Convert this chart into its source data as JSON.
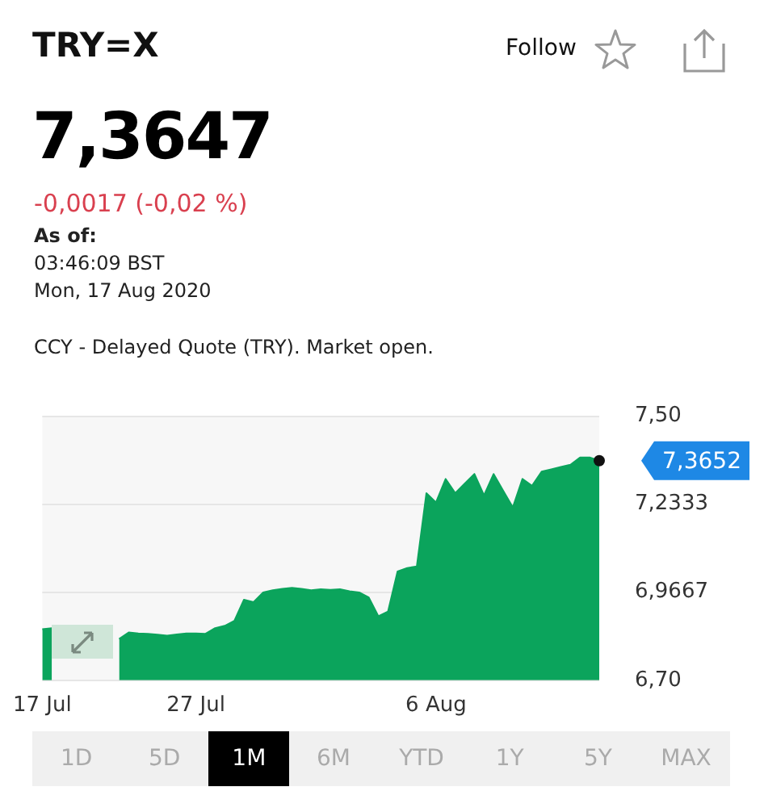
{
  "chart_data": {
    "type": "area",
    "title": "TRY=X",
    "subtitle": "CCY - Delayed Quote (TRY). Market open.",
    "categories": [
      "17 Jul",
      null,
      null,
      null,
      null,
      null,
      null,
      null,
      null,
      null,
      null,
      null,
      null,
      null,
      null,
      null,
      "27 Jul",
      null,
      null,
      null,
      null,
      null,
      null,
      null,
      null,
      null,
      null,
      null,
      null,
      null,
      null,
      null,
      null,
      null,
      null,
      null,
      null,
      null,
      null,
      null,
      null,
      "6 Aug",
      null,
      null,
      null,
      null,
      null,
      null,
      null,
      null,
      null,
      null,
      null,
      null,
      null,
      null,
      null,
      null,
      null
    ],
    "series": [
      {
        "color": "#0ba45c",
        "values": [
          6.855,
          6.858,
          null,
          null,
          null,
          null,
          null,
          null,
          6.825,
          6.845,
          6.842,
          6.841,
          6.838,
          6.835,
          6.839,
          6.842,
          6.842,
          6.841,
          6.858,
          6.865,
          6.88,
          6.944,
          6.937,
          6.966,
          6.973,
          6.977,
          6.98,
          6.977,
          6.973,
          6.976,
          6.974,
          6.976,
          6.97,
          6.966,
          6.951,
          6.894,
          6.908,
          7.03,
          7.04,
          7.045,
          7.267,
          7.239,
          7.31,
          7.267,
          7.296,
          7.325,
          7.26,
          7.325,
          7.274,
          7.224,
          7.31,
          7.289,
          7.332,
          7.339,
          7.346,
          7.353,
          7.375,
          7.375,
          7.365
        ]
      }
    ],
    "ylim": [
      6.7,
      7.5
    ],
    "yticks": [
      {
        "value": 7.5,
        "label": "7,50"
      },
      {
        "value": 7.2333,
        "label": "7,2333"
      },
      {
        "value": 6.9667,
        "label": "6,9667"
      },
      {
        "value": 6.7,
        "label": "6,70"
      }
    ],
    "grid": "y",
    "legend": false,
    "marker": "none",
    "annotations": [
      "7,3647",
      "-0,0017 (-0,02 %)",
      "As of:",
      "03:46:09 BST",
      "Mon, 17 Aug 2020",
      "Follow",
      "1D",
      "5D",
      "1M",
      "6M",
      "YTD",
      "1Y",
      "5Y",
      "MAX",
      "7,3652"
    ]
  }
}
